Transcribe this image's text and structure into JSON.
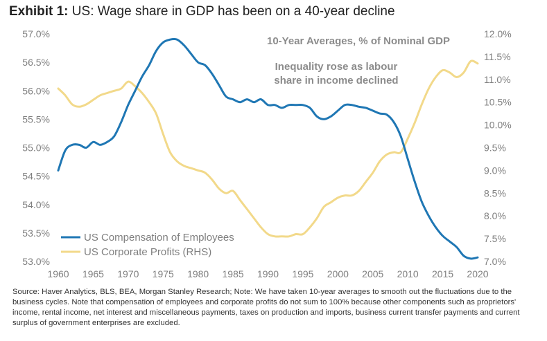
{
  "title": {
    "exhibit": "Exhibit 1:",
    "text": "US: Wage share in GDP has been on a 40-year decline"
  },
  "source_note": "Source: Haver Analytics, BLS, BEA, Morgan Stanley Research; Note: We have taken 10-year averages to smooth out the fluctuations due to the business cycles. Note that compensation of employees and corporate profits do not sum to 100% because other components such as proprietors' income, rental income, net interest and miscellaneous payments, taxes on production and imports, business current transfer payments and current surplus of government enterprises are excluded.",
  "chart_data": {
    "type": "line",
    "annotations": [
      "10-Year Averages, % of Nominal GDP",
      "Inequality rose as labour",
      "share in income declined"
    ],
    "xlim": [
      1960,
      2020
    ],
    "ylim_left": [
      53.0,
      57.0
    ],
    "ylim_right": [
      7.0,
      12.0
    ],
    "x_ticks": [
      "1960",
      "1965",
      "1970",
      "1975",
      "1980",
      "1985",
      "1990",
      "1995",
      "2000",
      "2005",
      "2010",
      "2015",
      "2020"
    ],
    "y_left_ticks": [
      "53.0%",
      "53.5%",
      "54.0%",
      "54.5%",
      "55.0%",
      "55.5%",
      "56.0%",
      "56.5%",
      "57.0%"
    ],
    "y_right_ticks": [
      "7.0%",
      "7.5%",
      "8.0%",
      "8.5%",
      "9.0%",
      "9.5%",
      "10.0%",
      "10.5%",
      "11.0%",
      "11.5%",
      "12.0%"
    ],
    "colors": {
      "compensation": "#1f77b4",
      "profits": "#f2d98a"
    },
    "series": [
      {
        "name": "US Compensation of Employees",
        "axis": "left",
        "x": [
          1960,
          1961,
          1962,
          1963,
          1964,
          1965,
          1966,
          1967,
          1968,
          1969,
          1970,
          1971,
          1972,
          1973,
          1974,
          1975,
          1976,
          1977,
          1978,
          1979,
          1980,
          1981,
          1982,
          1983,
          1984,
          1985,
          1986,
          1987,
          1988,
          1989,
          1990,
          1991,
          1992,
          1993,
          1994,
          1995,
          1996,
          1997,
          1998,
          1999,
          2000,
          2001,
          2002,
          2003,
          2004,
          2005,
          2006,
          2007,
          2008,
          2009,
          2010,
          2011,
          2012,
          2013,
          2014,
          2015,
          2016,
          2017,
          2018,
          2019,
          2020
        ],
        "values": [
          54.6,
          54.95,
          55.05,
          55.05,
          55.0,
          55.1,
          55.05,
          55.1,
          55.2,
          55.45,
          55.75,
          56.0,
          56.25,
          56.45,
          56.7,
          56.85,
          56.9,
          56.9,
          56.8,
          56.65,
          56.5,
          56.45,
          56.3,
          56.1,
          55.9,
          55.85,
          55.8,
          55.85,
          55.8,
          55.85,
          55.75,
          55.75,
          55.7,
          55.75,
          55.75,
          55.75,
          55.7,
          55.55,
          55.5,
          55.55,
          55.65,
          55.75,
          55.75,
          55.72,
          55.7,
          55.65,
          55.6,
          55.58,
          55.45,
          55.2,
          54.8,
          54.4,
          54.05,
          53.8,
          53.6,
          53.45,
          53.35,
          53.25,
          53.1,
          53.05,
          53.07
        ]
      },
      {
        "name": "US Corporate Profits (RHS)",
        "axis": "right",
        "x": [
          1960,
          1961,
          1962,
          1963,
          1964,
          1965,
          1966,
          1967,
          1968,
          1969,
          1970,
          1971,
          1972,
          1973,
          1974,
          1975,
          1976,
          1977,
          1978,
          1979,
          1980,
          1981,
          1982,
          1983,
          1984,
          1985,
          1986,
          1987,
          1988,
          1989,
          1990,
          1991,
          1992,
          1993,
          1994,
          1995,
          1996,
          1997,
          1998,
          1999,
          2000,
          2001,
          2002,
          2003,
          2004,
          2005,
          2006,
          2007,
          2008,
          2009,
          2010,
          2011,
          2012,
          2013,
          2014,
          2015,
          2016,
          2017,
          2018,
          2019,
          2020
        ],
        "values": [
          10.8,
          10.65,
          10.45,
          10.4,
          10.45,
          10.55,
          10.65,
          10.7,
          10.75,
          10.8,
          10.95,
          10.85,
          10.7,
          10.5,
          10.25,
          9.8,
          9.4,
          9.2,
          9.1,
          9.05,
          9.0,
          8.95,
          8.8,
          8.6,
          8.5,
          8.55,
          8.35,
          8.15,
          7.95,
          7.75,
          7.6,
          7.55,
          7.55,
          7.55,
          7.6,
          7.6,
          7.75,
          7.95,
          8.2,
          8.3,
          8.4,
          8.45,
          8.45,
          8.55,
          8.75,
          8.95,
          9.2,
          9.35,
          9.4,
          9.4,
          9.7,
          10.05,
          10.45,
          10.8,
          11.05,
          11.2,
          11.15,
          11.05,
          11.15,
          11.4,
          11.35
        ]
      }
    ]
  }
}
